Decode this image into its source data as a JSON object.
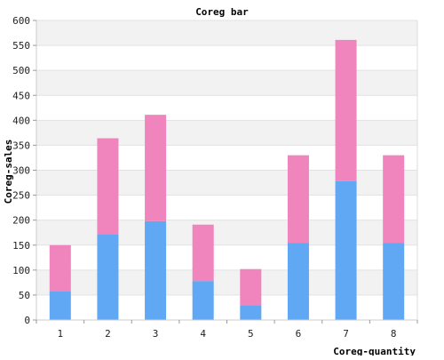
{
  "chart_data": {
    "type": "bar",
    "stacked": true,
    "title": "Coreg bar",
    "xlabel": "Coreg-quantity",
    "ylabel": "Coreg-sales",
    "categories": [
      "1",
      "2",
      "3",
      "4",
      "5",
      "6",
      "7",
      "8"
    ],
    "series": [
      {
        "color": "#60a8f4",
        "values": [
          57,
          172,
          198,
          78,
          30,
          154,
          278,
          154
        ]
      },
      {
        "color": "#f084bc",
        "values": [
          93,
          192,
          213,
          113,
          72,
          176,
          283,
          176
        ]
      }
    ],
    "ylim": [
      0,
      600
    ],
    "yticks": [
      0,
      50,
      100,
      150,
      200,
      250,
      300,
      350,
      400,
      450,
      500,
      550,
      600
    ],
    "grid": true,
    "legend": "none"
  }
}
